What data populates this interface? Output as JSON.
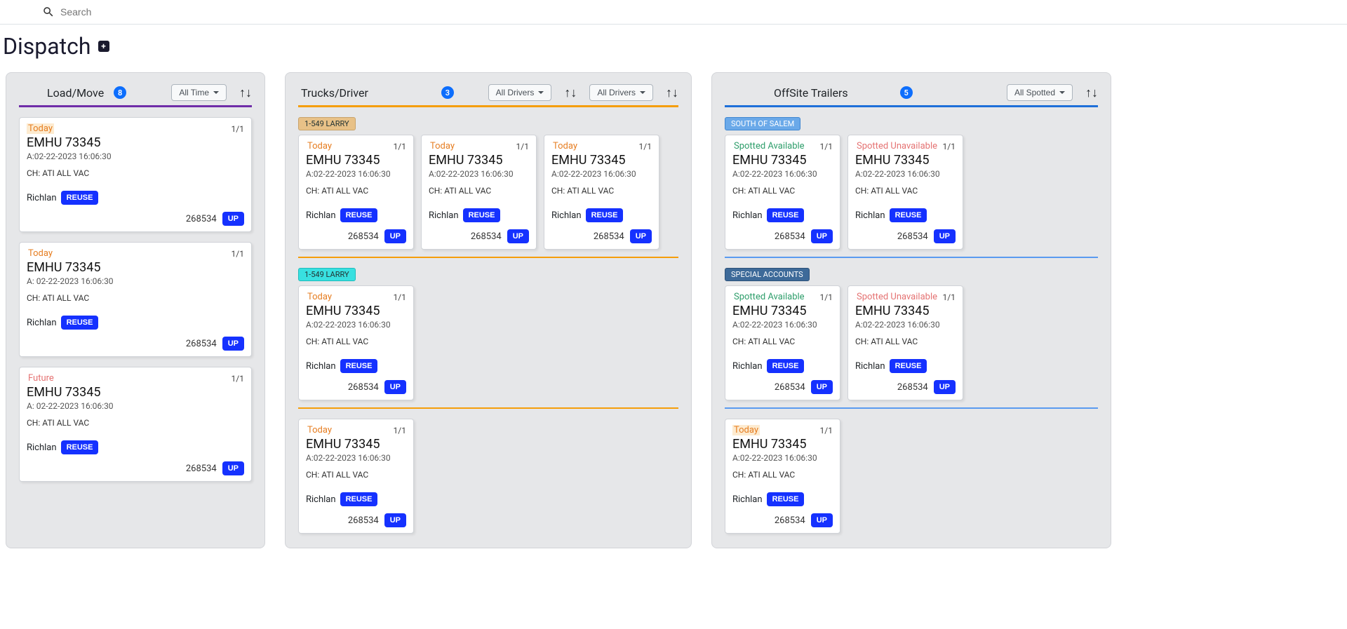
{
  "search": {
    "placeholder": "Search"
  },
  "page": {
    "title": "Dispatch"
  },
  "colors": {
    "accent_blue": "#1531ff",
    "rule_purple": "#6f2da8",
    "rule_orange": "#f59e0b",
    "rule_blue": "#1e6fd9"
  },
  "columns": {
    "load": {
      "title": "Load/Move",
      "count": "8",
      "filter": "All Time",
      "cards": [
        {
          "tag": "Today",
          "tag_style": "today_hl",
          "ratio": "1/1",
          "title": "EMHU 73345",
          "subtitle": "A:02-22-2023 16:06:30",
          "line": "CH: ATI ALL VAC",
          "dest": "Richlan",
          "reuse": "REUSE",
          "foot_num": "268534",
          "up": "UP"
        },
        {
          "tag": "Today",
          "tag_style": "today",
          "ratio": "1/1",
          "title": "EMHU 73345",
          "subtitle": "A: 02-22-2023 16:06:30",
          "line": "CH: ATI ALL VAC",
          "dest": "Richlan",
          "reuse": "REUSE",
          "foot_num": "268534",
          "up": "UP"
        },
        {
          "tag": "Future",
          "tag_style": "future",
          "ratio": "1/1",
          "title": "EMHU 73345",
          "subtitle": "A: 02-22-2023 16:06:30",
          "line": "CH: ATI ALL VAC",
          "dest": "Richlan",
          "reuse": "REUSE",
          "foot_num": "268534",
          "up": "UP"
        }
      ]
    },
    "trucks": {
      "title": "Trucks/Driver",
      "count": "3",
      "filter1": "All Drivers",
      "filter2": "All Drivers",
      "groups": [
        {
          "label": "1-549 LARRY",
          "label_style": "tan",
          "rule": "orange",
          "cards": [
            {
              "tag": "Today",
              "tag_style": "today",
              "ratio": "1/1",
              "title": "EMHU 73345",
              "subtitle": "A:02-22-2023 16:06:30",
              "line": "CH: ATI ALL VAC",
              "dest": "Richlan",
              "reuse": "REUSE",
              "foot_num": "268534",
              "up": "UP"
            },
            {
              "tag": "Today",
              "tag_style": "today",
              "ratio": "1/1",
              "title": "EMHU 73345",
              "subtitle": "A:02-22-2023 16:06:30",
              "line": "CH: ATI ALL VAC",
              "dest": "Richlan",
              "reuse": "REUSE",
              "foot_num": "268534",
              "up": "UP"
            },
            {
              "tag": "Today",
              "tag_style": "today",
              "ratio": "1/1",
              "title": "EMHU 73345",
              "subtitle": "A:02-22-2023 16:06:30",
              "line": "CH: ATI ALL VAC",
              "dest": "Richlan",
              "reuse": "REUSE",
              "foot_num": "268534",
              "up": "UP"
            }
          ]
        },
        {
          "label": "1-549 LARRY",
          "label_style": "cyan",
          "rule": "orange",
          "cards": [
            {
              "tag": "Today",
              "tag_style": "today",
              "ratio": "1/1",
              "title": "EMHU 73345",
              "subtitle": "A:02-22-2023 16:06:30",
              "line": "CH: ATI ALL VAC",
              "dest": "Richlan",
              "reuse": "REUSE",
              "foot_num": "268534",
              "up": "UP"
            }
          ]
        },
        {
          "label": "",
          "label_style": "",
          "rule": "",
          "cards": [
            {
              "tag": "Today",
              "tag_style": "today",
              "ratio": "1/1",
              "title": "EMHU 73345",
              "subtitle": "A:02-22-2023 16:06:30",
              "line": "CH: ATI ALL VAC",
              "dest": "Richlan",
              "reuse": "REUSE",
              "foot_num": "268534",
              "up": "UP"
            }
          ]
        }
      ]
    },
    "offsite": {
      "title": "OffSite Trailers",
      "count": "5",
      "filter": "All Spotted",
      "groups": [
        {
          "label": "SOUTH OF SALEM",
          "label_style": "ltblue",
          "rule": "blue",
          "cards": [
            {
              "tag": "Spotted Available",
              "tag_style": "avail",
              "ratio": "1/1",
              "title": "EMHU 73345",
              "subtitle": "A:02-22-2023 16:06:30",
              "line": "CH: ATI ALL VAC",
              "dest": "Richlan",
              "reuse": "REUSE",
              "foot_num": "268534",
              "up": "UP"
            },
            {
              "tag": "Spotted Unavailable",
              "tag_style": "unavail",
              "ratio": "1/1",
              "title": "EMHU 73345",
              "subtitle": "A:02-22-2023 16:06:30",
              "line": "CH: ATI ALL VAC",
              "dest": "Richlan",
              "reuse": "REUSE",
              "foot_num": "268534",
              "up": "UP"
            }
          ]
        },
        {
          "label": "SPECIAL ACCOUNTS",
          "label_style": "steel",
          "rule": "blue",
          "cards": [
            {
              "tag": "Spotted Available",
              "tag_style": "avail",
              "ratio": "1/1",
              "title": "EMHU 73345",
              "subtitle": "A:02-22-2023 16:06:30",
              "line": "CH: ATI ALL VAC",
              "dest": "Richlan",
              "reuse": "REUSE",
              "foot_num": "268534",
              "up": "UP"
            },
            {
              "tag": "Spotted Unavailable",
              "tag_style": "unavail",
              "ratio": "1/1",
              "title": "EMHU 73345",
              "subtitle": "A:02-22-2023 16:06:30",
              "line": "CH: ATI ALL VAC",
              "dest": "Richlan",
              "reuse": "REUSE",
              "foot_num": "268534",
              "up": "UP"
            }
          ]
        },
        {
          "label": "",
          "label_style": "",
          "rule": "",
          "cards": [
            {
              "tag": "Today",
              "tag_style": "today_hl",
              "ratio": "1/1",
              "title": "EMHU 73345",
              "subtitle": "A:02-22-2023 16:06:30",
              "line": "CH: ATI ALL VAC",
              "dest": "Richlan",
              "reuse": "REUSE",
              "foot_num": "268534",
              "up": "UP"
            }
          ]
        }
      ]
    }
  }
}
